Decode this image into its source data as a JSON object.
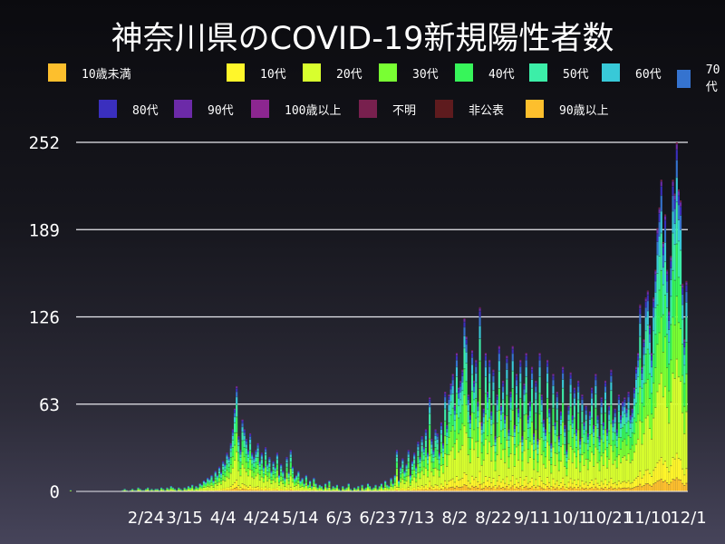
{
  "chart_data": {
    "type": "bar",
    "stacked": true,
    "title": "神奈川県のCOVID-19新規陽性者数",
    "ylim": [
      0,
      252
    ],
    "yticks": [
      0,
      63,
      126,
      189,
      252
    ],
    "xticks": [
      "2/24",
      "3/15",
      "4/4",
      "4/24",
      "5/14",
      "6/3",
      "6/23",
      "7/13",
      "8/2",
      "8/22",
      "9/11",
      "10/1",
      "10/21",
      "11/10",
      "12/1"
    ],
    "grid": "horizontal",
    "legend_placement": "top",
    "series": [
      {
        "name": "10歳未満",
        "color": "#fdbf2d",
        "share": 0.04
      },
      {
        "name": "10代",
        "color": "#fff62a",
        "share": 0.07
      },
      {
        "name": "20代",
        "color": "#d8ff2e",
        "share": 0.27
      },
      {
        "name": "30代",
        "color": "#79ff33",
        "share": 0.18
      },
      {
        "name": "40代",
        "color": "#37f55a",
        "share": 0.15
      },
      {
        "name": "50代",
        "color": "#3ceea8",
        "share": 0.12
      },
      {
        "name": "60代",
        "color": "#38c9d8",
        "share": 0.07
      },
      {
        "name": "70代",
        "color": "#3573cf",
        "share": 0.05
      },
      {
        "name": "80代",
        "color": "#3a2fbe",
        "share": 0.03
      },
      {
        "name": "90代",
        "color": "#6c2aa8",
        "share": 0.015
      },
      {
        "name": "100歳以上",
        "color": "#8c2690",
        "share": 0
      },
      {
        "name": "不明",
        "color": "#78204e",
        "share": 0.005
      },
      {
        "name": "非公表",
        "color": "#5e1b1e",
        "share": 0
      },
      {
        "name": "90歳以上",
        "color": "#fdbf2d",
        "share": 0
      }
    ],
    "daily_totals": [
      {
        "month": 1,
        "first_day": 16,
        "values": [
          1,
          0,
          0,
          0,
          0,
          0,
          0,
          0,
          0,
          0,
          0,
          0,
          0,
          0,
          0,
          0
        ]
      },
      {
        "month": 2,
        "first_day": 1,
        "values": [
          0,
          0,
          0,
          0,
          0,
          0,
          0,
          0,
          0,
          0,
          0,
          1,
          2,
          1,
          0,
          1,
          2,
          1,
          1,
          3,
          2,
          1,
          1,
          2,
          3,
          1,
          2,
          1,
          2
        ]
      },
      {
        "month": 3,
        "first_day": 1,
        "values": [
          2,
          1,
          3,
          2,
          1,
          3,
          2,
          4,
          3,
          2,
          1,
          3,
          2,
          1,
          3,
          2,
          4,
          3,
          5,
          2,
          4,
          3,
          6,
          5,
          8,
          7,
          10,
          9,
          12,
          8,
          15
        ]
      },
      {
        "month": 4,
        "first_day": 1,
        "values": [
          12,
          18,
          14,
          22,
          20,
          28,
          25,
          35,
          45,
          60,
          76,
          40,
          30,
          52,
          45,
          38,
          30,
          42,
          28,
          25,
          30,
          35,
          22,
          28,
          18,
          32,
          20,
          25,
          15,
          22
        ]
      },
      {
        "month": 5,
        "first_day": 1,
        "values": [
          18,
          28,
          12,
          20,
          15,
          10,
          25,
          14,
          30,
          18,
          10,
          12,
          15,
          8,
          10,
          6,
          12,
          5,
          8,
          4,
          10,
          6,
          3,
          5,
          4,
          2,
          6,
          3,
          8,
          2,
          4
        ]
      },
      {
        "month": 6,
        "first_day": 1,
        "values": [
          3,
          5,
          2,
          1,
          4,
          2,
          3,
          6,
          2,
          1,
          3,
          2,
          4,
          1,
          5,
          2,
          3,
          6,
          4,
          2,
          3,
          5,
          2,
          4,
          6,
          3,
          8,
          5,
          4,
          10
        ]
      },
      {
        "month": 7,
        "first_day": 1,
        "values": [
          6,
          12,
          30,
          8,
          18,
          24,
          15,
          20,
          30,
          12,
          22,
          28,
          18,
          36,
          25,
          40,
          32,
          45,
          28,
          68,
          38,
          30,
          45,
          42,
          28,
          50,
          35,
          72,
          48,
          70,
          78
        ]
      },
      {
        "month": 8,
        "first_day": 1,
        "values": [
          85,
          62,
          100,
          75,
          80,
          88,
          125,
          112,
          70,
          55,
          102,
          80,
          95,
          65,
          133,
          50,
          60,
          100,
          72,
          95,
          58,
          88,
          40,
          70,
          105,
          62,
          80,
          55,
          98,
          45,
          72
        ]
      },
      {
        "month": 9,
        "first_day": 1,
        "values": [
          105,
          48,
          85,
          60,
          95,
          40,
          78,
          100,
          55,
          65,
          90,
          42,
          80,
          38,
          100,
          70,
          52,
          45,
          95,
          60,
          35,
          85,
          50,
          72,
          40,
          58,
          90,
          48,
          30,
          62
        ]
      },
      {
        "month": 10,
        "first_day": 1,
        "values": [
          86,
          55,
          75,
          45,
          80,
          38,
          70,
          50,
          62,
          42,
          58,
          75,
          48,
          85,
          55,
          40,
          68,
          50,
          80,
          45,
          62,
          88,
          52,
          60,
          45,
          70,
          55,
          65,
          68,
          60,
          72
        ]
      },
      {
        "month": 11,
        "first_day": 1,
        "values": [
          55,
          60,
          75,
          90,
          100,
          135,
          90,
          110,
          140,
          145,
          120,
          100,
          140,
          160,
          190,
          205,
          225,
          180,
          200,
          160,
          130,
          170,
          225,
          215,
          252,
          218,
          210,
          150,
          110,
          152
        ]
      }
    ]
  }
}
